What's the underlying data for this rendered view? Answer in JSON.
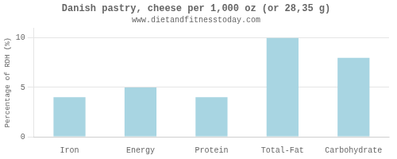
{
  "chart_data": {
    "type": "bar",
    "title": "Danish pastry, cheese per 1,000 oz (or 28,35 g)",
    "subtitle": "www.dietandfitnesstoday.com",
    "categories": [
      "Iron",
      "Energy",
      "Protein",
      "Total-Fat",
      "Carbohydrate"
    ],
    "values": [
      4.0,
      5.0,
      4.0,
      10.0,
      8.0
    ],
    "color": "#a8d5e2",
    "ylabel": "Percentage of RDH (%)",
    "ylim": [
      0,
      11
    ],
    "yticks": [
      0,
      5,
      10
    ],
    "grid": true
  }
}
